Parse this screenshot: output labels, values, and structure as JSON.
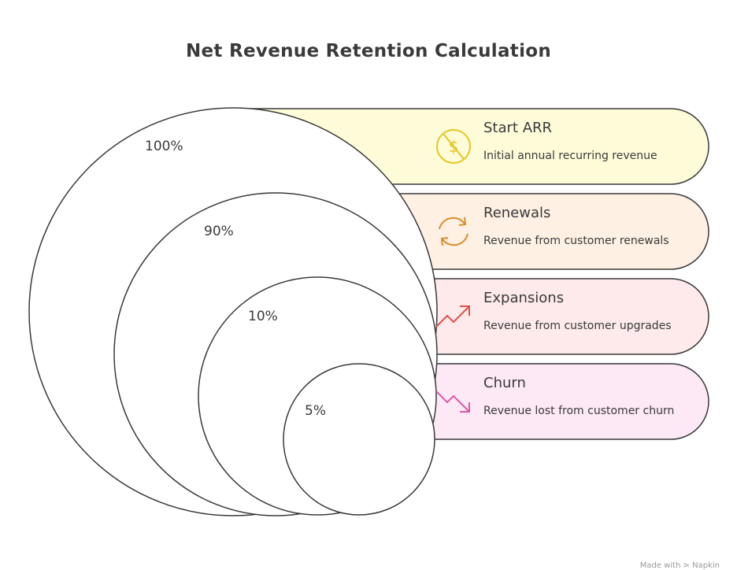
{
  "title": "Net Revenue Retention Calculation",
  "colors": {
    "stroke": "#3a3a3a",
    "start_band": "#fefbd9",
    "renewals_band": "#fef0e3",
    "expansions_band": "#feeaea",
    "churn_band": "#fde8f5",
    "start_icon": "#e2c720",
    "renewals_icon": "#e08a2a",
    "expansions_icon": "#e0504a",
    "churn_icon": "#d85aa8"
  },
  "levels": [
    {
      "percent": "100%",
      "title": "Start ARR",
      "description": "Initial annual recurring revenue",
      "icon": "dollar-coin-icon"
    },
    {
      "percent": "90%",
      "title": "Renewals",
      "description": "Revenue from customer renewals",
      "icon": "refresh-arrows-icon"
    },
    {
      "percent": "10%",
      "title": "Expansions",
      "description": "Revenue from customer upgrades",
      "icon": "trend-up-icon"
    },
    {
      "percent": "5%",
      "title": "Churn",
      "description": "Revenue lost from customer churn",
      "icon": "trend-down-icon"
    }
  ],
  "watermark": "Made with ⋗ Napkin"
}
